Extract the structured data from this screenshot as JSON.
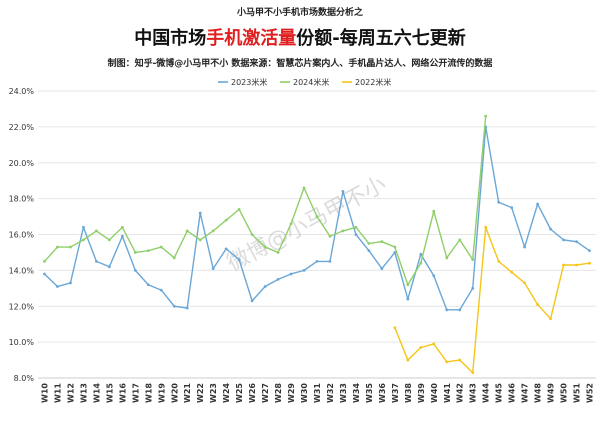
{
  "header": {
    "top_line": "小马甲不小手机市场数据分析之",
    "title_prefix": "中国市场",
    "title_highlight": "手机激活量",
    "title_suffix": "份额-每周五六七更新",
    "subtitle": "制图：知乎-微博@小马甲不小   数据来源：智慧芯片案内人、手机晶片达人、网络公开流传的数据"
  },
  "watermark": "微博@小马甲不小",
  "colors": {
    "series_2023": "#6aa7d8",
    "series_2024": "#8fcf6a",
    "series_2022": "#f5c518",
    "title_highlight": "#e02020",
    "grid": "#e6e6e6"
  },
  "chart_data": {
    "type": "line",
    "categories": [
      "W10",
      "W11",
      "W12",
      "W13",
      "W14",
      "W15",
      "W16",
      "W17",
      "W18",
      "W19",
      "W20",
      "W21",
      "W22",
      "W23",
      "W24",
      "W25",
      "W26",
      "W27",
      "W28",
      "W29",
      "W30",
      "W31",
      "W32",
      "W33",
      "W34",
      "W35",
      "W36",
      "W37",
      "W38",
      "W39",
      "W40",
      "W41",
      "W42",
      "W43",
      "W44",
      "W45",
      "W46",
      "W47",
      "W48",
      "W49",
      "W50",
      "W51",
      "W52"
    ],
    "series": [
      {
        "name": "2023米米",
        "color": "#6aa7d8",
        "values": [
          13.8,
          13.1,
          13.3,
          16.4,
          14.5,
          14.2,
          15.9,
          14.0,
          13.2,
          12.9,
          12.0,
          11.9,
          17.2,
          14.1,
          15.2,
          14.6,
          12.3,
          13.1,
          13.5,
          13.8,
          14.0,
          14.5,
          14.5,
          18.4,
          16.0,
          15.1,
          14.1,
          15.0,
          12.4,
          14.9,
          13.7,
          11.8,
          11.8,
          13.0,
          22.0,
          17.8,
          17.5,
          15.3,
          17.7,
          16.3,
          15.7,
          15.6,
          15.1
        ]
      },
      {
        "name": "2024米米",
        "color": "#8fcf6a",
        "values": [
          14.5,
          15.3,
          15.3,
          15.7,
          16.2,
          15.7,
          16.4,
          15.0,
          15.1,
          15.3,
          14.7,
          16.2,
          15.7,
          16.2,
          16.8,
          17.4,
          16.0,
          15.3,
          15.0,
          16.6,
          18.6,
          17.0,
          15.9,
          16.2,
          16.4,
          15.5,
          15.6,
          15.3,
          13.2,
          14.4,
          17.3,
          14.7,
          15.7,
          14.6,
          22.6,
          null,
          null,
          null,
          null,
          null,
          null,
          null,
          null
        ]
      },
      {
        "name": "2022米米",
        "color": "#f5c518",
        "values": [
          null,
          null,
          null,
          null,
          null,
          null,
          null,
          null,
          null,
          null,
          null,
          null,
          null,
          null,
          null,
          null,
          null,
          null,
          null,
          null,
          null,
          null,
          null,
          null,
          null,
          null,
          null,
          10.8,
          9.0,
          9.7,
          9.9,
          8.9,
          9.0,
          8.3,
          16.4,
          14.5,
          13.9,
          13.3,
          12.1,
          11.3,
          14.3,
          14.3,
          14.4
        ]
      }
    ],
    "legend_order": [
      0,
      1,
      2
    ],
    "y_ticks": [
      "8.0%",
      "10.0%",
      "12.0%",
      "14.0%",
      "16.0%",
      "18.0%",
      "20.0%",
      "22.0%",
      "24.0%"
    ],
    "ylim": [
      8,
      24
    ],
    "grid": true,
    "legend_position": "top-center"
  }
}
